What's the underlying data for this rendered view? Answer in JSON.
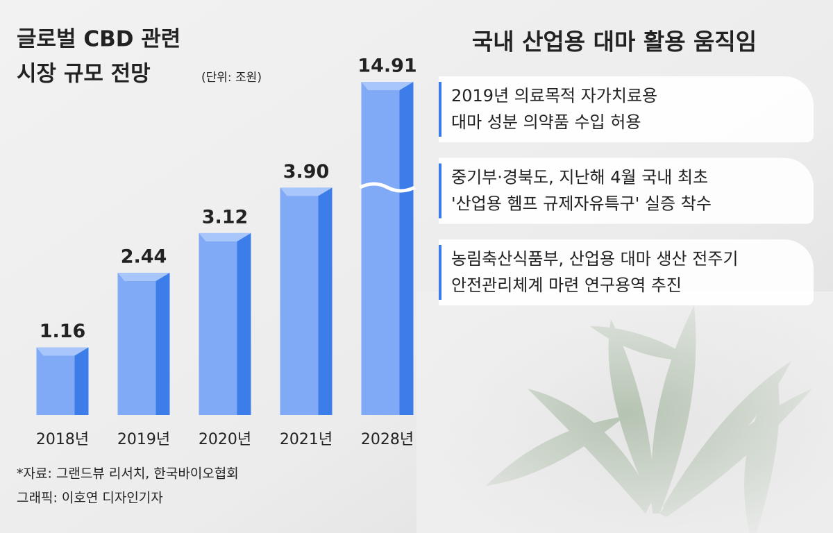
{
  "chart_data": {
    "type": "bar",
    "title": [
      "글로벌 CBD 관련",
      "시장 규모 전망"
    ],
    "subtitle": "(단위: 조원)",
    "categories": [
      "2018년",
      "2019년",
      "2020년",
      "2021년",
      "2028년"
    ],
    "values": [
      1.16,
      2.44,
      3.12,
      3.9,
      14.91
    ],
    "value_labels": [
      "1.16",
      "2.44",
      "3.12",
      "3.90",
      "14.91"
    ],
    "color": "#5b93f0",
    "source": "*자료: 그랜드뷰 리서치, 한국바이오협회",
    "credit": "그래픽: 이호연 디자인기자"
  },
  "panel": {
    "title": "국내 산업용 대마 활용 움직임",
    "items": [
      [
        "2019년 의료목적 자가치료용",
        "대마 성분 의약품 수입 허용"
      ],
      [
        "중기부·경북도, 지난해 4월 국내 최초",
        "'산업용 헴프 규제자유특구' 실증 착수"
      ],
      [
        "농림축산식품부, 산업용 대마 생산 전주기",
        "안전관리체계 마련 연구용역 추진"
      ]
    ]
  }
}
